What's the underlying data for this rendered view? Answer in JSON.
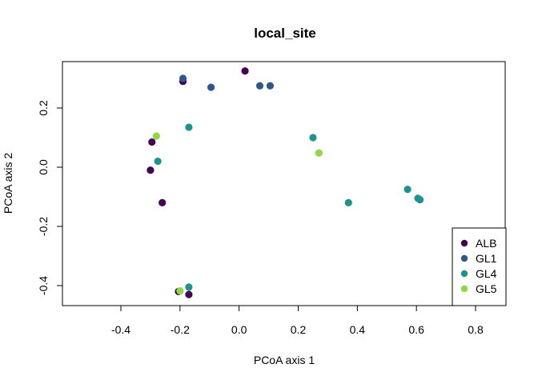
{
  "chart_data": {
    "type": "scatter",
    "title": "local_site",
    "xlabel": "PCoA axis 1",
    "ylabel": "PCoA axis 2",
    "xlim": [
      -0.6,
      0.9
    ],
    "ylim": [
      -0.46,
      0.36
    ],
    "xticks": [
      -0.4,
      -0.2,
      0.0,
      0.2,
      0.4,
      0.6,
      0.8
    ],
    "yticks": [
      -0.4,
      -0.2,
      0.0,
      0.2
    ],
    "xtick_labels": [
      "-0.4",
      "-0.2",
      "0.0",
      "0.2",
      "0.4",
      "0.6",
      "0.8"
    ],
    "ytick_labels": [
      "-0.4",
      "-0.2",
      "0.0",
      "0.2"
    ],
    "grid": false,
    "legend_position": "bottom-right",
    "series": [
      {
        "name": "ALB",
        "color": "#440154",
        "points": [
          {
            "x": 0.02,
            "y": 0.325
          },
          {
            "x": -0.19,
            "y": 0.29
          },
          {
            "x": -0.295,
            "y": 0.085
          },
          {
            "x": -0.3,
            "y": -0.01
          },
          {
            "x": -0.26,
            "y": -0.12
          },
          {
            "x": -0.205,
            "y": -0.42
          },
          {
            "x": -0.17,
            "y": -0.43
          }
        ]
      },
      {
        "name": "GL1",
        "color": "#31568C",
        "points": [
          {
            "x": -0.19,
            "y": 0.3
          },
          {
            "x": -0.095,
            "y": 0.27
          },
          {
            "x": 0.07,
            "y": 0.275
          },
          {
            "x": 0.105,
            "y": 0.275
          }
        ]
      },
      {
        "name": "GL4",
        "color": "#20928C",
        "points": [
          {
            "x": -0.17,
            "y": 0.135
          },
          {
            "x": -0.275,
            "y": 0.02
          },
          {
            "x": 0.25,
            "y": 0.1
          },
          {
            "x": 0.37,
            "y": -0.12
          },
          {
            "x": 0.57,
            "y": -0.075
          },
          {
            "x": 0.605,
            "y": -0.105
          },
          {
            "x": 0.612,
            "y": -0.11
          },
          {
            "x": -0.17,
            "y": -0.405
          }
        ]
      },
      {
        "name": "GL5",
        "color": "#8FD744",
        "points": [
          {
            "x": -0.28,
            "y": 0.105
          },
          {
            "x": 0.27,
            "y": 0.048
          },
          {
            "x": -0.2,
            "y": -0.418
          }
        ]
      }
    ]
  }
}
